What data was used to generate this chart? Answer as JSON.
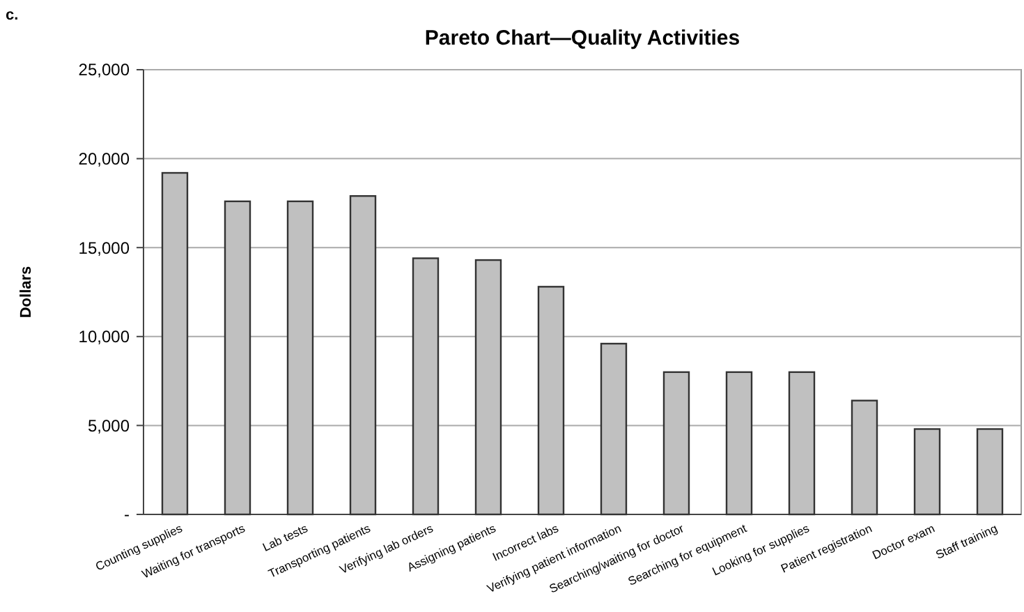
{
  "chart_data": {
    "type": "bar",
    "title": "Pareto Chart—Quality Activities",
    "ylabel": "Dollars",
    "annotations": [
      "c."
    ],
    "categories": [
      "Counting supplies",
      "Waiting for transports",
      "Lab tests",
      "Transporting patients",
      "Verifying lab orders",
      "Assigning patients",
      "Incorrect labs",
      "Verifying patient information",
      "Searching/waiting for doctor",
      "Searching for equipment",
      "Looking for supplies",
      "Patient registration",
      "Doctor exam",
      "Staff training"
    ],
    "values": [
      19200,
      17600,
      17600,
      17900,
      14400,
      14300,
      12800,
      9600,
      8000,
      8000,
      8000,
      6400,
      4800,
      4800
    ],
    "color": "#c0c0c0",
    "ylim": [
      0,
      25000
    ],
    "yticks": [
      {
        "value": 0,
        "label": "-"
      },
      {
        "value": 5000,
        "label": "5,000"
      },
      {
        "value": 10000,
        "label": "10,000"
      },
      {
        "value": 15000,
        "label": "15,000"
      },
      {
        "value": 20000,
        "label": "20,000"
      },
      {
        "value": 25000,
        "label": "25,000"
      }
    ],
    "grid": "y"
  }
}
